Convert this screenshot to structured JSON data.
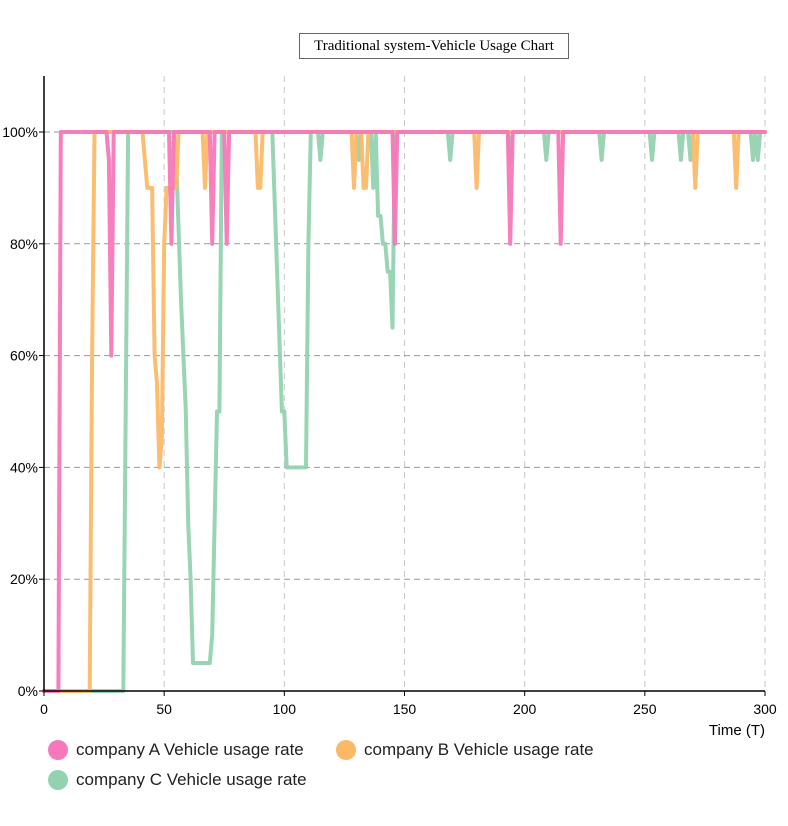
{
  "chart_data": {
    "type": "line",
    "title": "Traditional system-Vehicle Usage Chart",
    "xlabel": "Time (T)",
    "ylabel": "",
    "xlim": [
      0,
      300
    ],
    "ylim": [
      0,
      110
    ],
    "x_ticks": [
      "0",
      "50",
      "100",
      "150",
      "200",
      "250",
      "300"
    ],
    "y_ticks": [
      "0%",
      "20%",
      "40%",
      "60%",
      "80%",
      "100%"
    ],
    "grid": "dashed",
    "legend_position": "bottom-left",
    "series": [
      {
        "name": "company A Vehicle usage rate",
        "color": "#f778b8",
        "points": [
          [
            0,
            0
          ],
          [
            6,
            0
          ],
          [
            7,
            100
          ],
          [
            26,
            100
          ],
          [
            27,
            95
          ],
          [
            28,
            60
          ],
          [
            29,
            100
          ],
          [
            52,
            100
          ],
          [
            53,
            80
          ],
          [
            54,
            100
          ],
          [
            69,
            100
          ],
          [
            70,
            80
          ],
          [
            71,
            100
          ],
          [
            75,
            100
          ],
          [
            76,
            80
          ],
          [
            77,
            100
          ],
          [
            145,
            100
          ],
          [
            146,
            80
          ],
          [
            147,
            100
          ],
          [
            193,
            100
          ],
          [
            194,
            80
          ],
          [
            195,
            100
          ],
          [
            214,
            100
          ],
          [
            215,
            80
          ],
          [
            216,
            100
          ],
          [
            300,
            100
          ]
        ]
      },
      {
        "name": "company B Vehicle usage rate",
        "color": "#fbb968",
        "points": [
          [
            0,
            0
          ],
          [
            19,
            0
          ],
          [
            20,
            60
          ],
          [
            21,
            100
          ],
          [
            41,
            100
          ],
          [
            43,
            90
          ],
          [
            45,
            90
          ],
          [
            46,
            60
          ],
          [
            47,
            55
          ],
          [
            48,
            40
          ],
          [
            49,
            45
          ],
          [
            50,
            80
          ],
          [
            51,
            90
          ],
          [
            55,
            90
          ],
          [
            56,
            100
          ],
          [
            66,
            100
          ],
          [
            67,
            90
          ],
          [
            68,
            100
          ],
          [
            88,
            100
          ],
          [
            89,
            90
          ],
          [
            90,
            90
          ],
          [
            91,
            100
          ],
          [
            128,
            100
          ],
          [
            129,
            90
          ],
          [
            130,
            100
          ],
          [
            132,
            100
          ],
          [
            133,
            90
          ],
          [
            134,
            90
          ],
          [
            135,
            100
          ],
          [
            179,
            100
          ],
          [
            180,
            90
          ],
          [
            181,
            100
          ],
          [
            270,
            100
          ],
          [
            271,
            90
          ],
          [
            272,
            100
          ],
          [
            287,
            100
          ],
          [
            288,
            90
          ],
          [
            289,
            100
          ],
          [
            300,
            100
          ]
        ]
      },
      {
        "name": "company C Vehicle usage rate",
        "color": "#93d2b0",
        "points": [
          [
            0,
            0
          ],
          [
            33,
            0
          ],
          [
            35,
            100
          ],
          [
            54,
            100
          ],
          [
            55,
            95
          ],
          [
            57,
            70
          ],
          [
            59,
            50
          ],
          [
            60,
            30
          ],
          [
            61,
            20
          ],
          [
            62,
            5
          ],
          [
            69,
            5
          ],
          [
            70,
            10
          ],
          [
            72,
            50
          ],
          [
            73,
            50
          ],
          [
            74,
            100
          ],
          [
            95,
            100
          ],
          [
            99,
            50
          ],
          [
            100,
            50
          ],
          [
            101,
            40
          ],
          [
            109,
            40
          ],
          [
            110,
            80
          ],
          [
            111,
            100
          ],
          [
            114,
            100
          ],
          [
            115,
            95
          ],
          [
            116,
            100
          ],
          [
            130,
            100
          ],
          [
            131,
            95
          ],
          [
            132,
            100
          ],
          [
            136,
            100
          ],
          [
            137,
            90
          ],
          [
            138,
            100
          ],
          [
            139,
            85
          ],
          [
            140,
            85
          ],
          [
            141,
            80
          ],
          [
            142,
            80
          ],
          [
            143,
            75
          ],
          [
            144,
            75
          ],
          [
            145,
            65
          ],
          [
            146,
            100
          ],
          [
            168,
            100
          ],
          [
            169,
            95
          ],
          [
            170,
            100
          ],
          [
            193,
            100
          ],
          [
            194,
            95
          ],
          [
            195,
            100
          ],
          [
            208,
            100
          ],
          [
            209,
            95
          ],
          [
            210,
            100
          ],
          [
            231,
            100
          ],
          [
            232,
            95
          ],
          [
            233,
            100
          ],
          [
            252,
            100
          ],
          [
            253,
            95
          ],
          [
            254,
            100
          ],
          [
            264,
            100
          ],
          [
            265,
            95
          ],
          [
            266,
            100
          ],
          [
            268,
            100
          ],
          [
            269,
            95
          ],
          [
            270,
            100
          ],
          [
            294,
            100
          ],
          [
            295,
            95
          ],
          [
            296,
            100
          ],
          [
            297,
            95
          ],
          [
            298,
            100
          ],
          [
            300,
            100
          ]
        ]
      }
    ]
  }
}
